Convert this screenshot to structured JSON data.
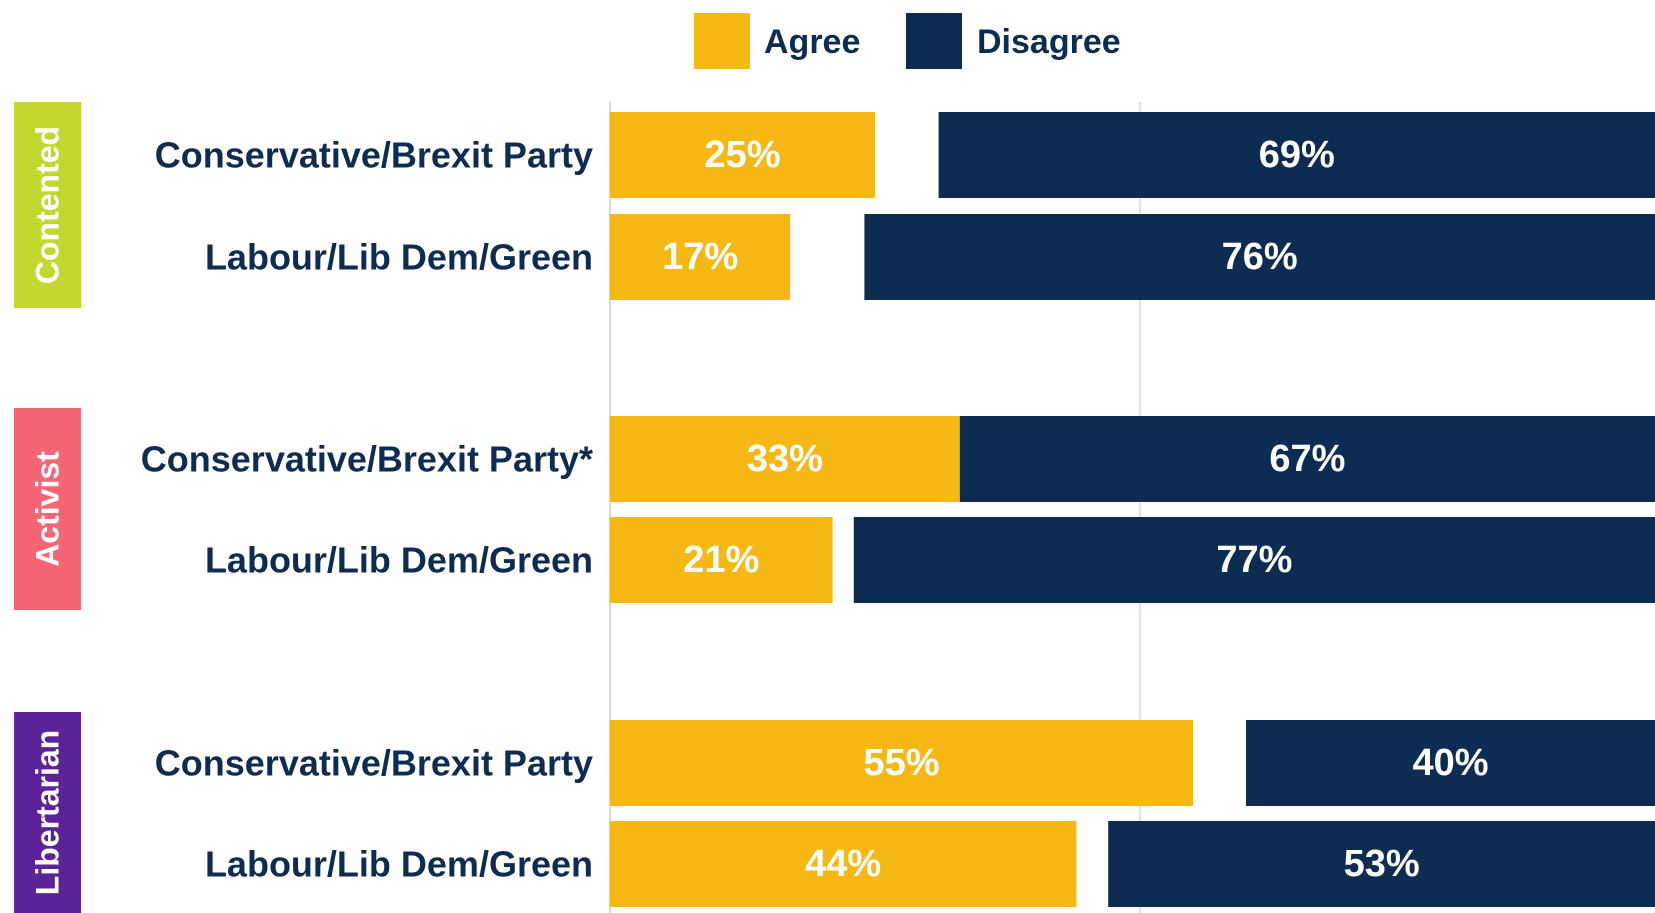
{
  "legend": {
    "items": [
      {
        "label": "Agree",
        "color": "#F5B814"
      },
      {
        "label": "Disagree",
        "color": "#0D2C52"
      }
    ]
  },
  "chart_data": {
    "type": "bar",
    "orientation": "horizontal",
    "layout": "diverging-split",
    "value_unit": "%",
    "xlim": [
      0,
      100
    ],
    "grid": true,
    "legend_position": "top-center",
    "series": [
      {
        "name": "Agree",
        "color": "#F5B814"
      },
      {
        "name": "Disagree",
        "color": "#0D2C52"
      }
    ],
    "groups": [
      {
        "name": "Contented",
        "color": "#C4D630",
        "rows": [
          {
            "label": "Conservative/Brexit Party",
            "agree": 25,
            "disagree": 69
          },
          {
            "label": "Labour/Lib Dem/Green",
            "agree": 17,
            "disagree": 76
          }
        ]
      },
      {
        "name": "Activist",
        "color": "#F46675",
        "rows": [
          {
            "label": "Conservative/Brexit Party*",
            "agree": 33,
            "disagree": 67
          },
          {
            "label": "Labour/Lib Dem/Green",
            "agree": 21,
            "disagree": 77
          }
        ]
      },
      {
        "name": "Libertarian",
        "color": "#5B2397",
        "rows": [
          {
            "label": "Conservative/Brexit Party",
            "agree": 55,
            "disagree": 40
          },
          {
            "label": "Labour/Lib Dem/Green",
            "agree": 44,
            "disagree": 53
          }
        ]
      }
    ]
  }
}
